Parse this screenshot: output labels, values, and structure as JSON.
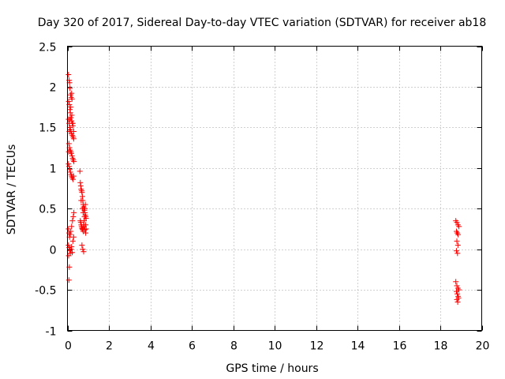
{
  "chart_data": {
    "type": "scatter",
    "title": "Day 320 of 2017, Sidereal Day-to-day VTEC variation (SDTVAR) for receiver ab18",
    "xlabel": "GPS time / hours",
    "ylabel": "SDTVAR / TECUs",
    "xlim": [
      0,
      20
    ],
    "ylim": [
      -1,
      2.5
    ],
    "xticks": [
      "0",
      "2",
      "4",
      "6",
      "8",
      "10",
      "12",
      "14",
      "16",
      "18",
      "20"
    ],
    "yticks": [
      "-1",
      "-0.5",
      "0",
      "0.5",
      "1",
      "1.5",
      "2",
      "2.5"
    ],
    "xtick_values": [
      0,
      2,
      4,
      6,
      8,
      10,
      12,
      14,
      16,
      18,
      20
    ],
    "ytick_values": [
      -1,
      -0.5,
      0,
      0.5,
      1,
      1.5,
      2,
      2.5
    ],
    "grid": true,
    "marker": "+",
    "color": "#ff0000",
    "series": [
      {
        "name": "SDTVAR",
        "points": [
          [
            0.05,
            2.15
          ],
          [
            0.08,
            2.08
          ],
          [
            0.1,
            2.05
          ],
          [
            0.12,
            1.98
          ],
          [
            0.15,
            1.9
          ],
          [
            0.18,
            1.87
          ],
          [
            0.2,
            1.92
          ],
          [
            0.22,
            1.85
          ],
          [
            0.06,
            1.82
          ],
          [
            0.09,
            1.78
          ],
          [
            0.12,
            1.72
          ],
          [
            0.14,
            1.68
          ],
          [
            0.17,
            1.62
          ],
          [
            0.2,
            1.58
          ],
          [
            0.23,
            1.55
          ],
          [
            0.26,
            1.52
          ],
          [
            0.05,
            1.6
          ],
          [
            0.08,
            1.55
          ],
          [
            0.11,
            1.5
          ],
          [
            0.14,
            1.47
          ],
          [
            0.17,
            1.45
          ],
          [
            0.2,
            1.42
          ],
          [
            0.24,
            1.4
          ],
          [
            0.28,
            1.38
          ],
          [
            0.3,
            1.36
          ],
          [
            0.07,
            1.3
          ],
          [
            0.1,
            1.25
          ],
          [
            0.13,
            1.22
          ],
          [
            0.16,
            1.2
          ],
          [
            0.19,
            1.18
          ],
          [
            0.22,
            1.15
          ],
          [
            0.25,
            1.12
          ],
          [
            0.28,
            1.1
          ],
          [
            0.31,
            1.08
          ],
          [
            0.05,
            1.05
          ],
          [
            0.08,
            1.02
          ],
          [
            0.11,
            0.98
          ],
          [
            0.14,
            0.95
          ],
          [
            0.17,
            0.92
          ],
          [
            0.2,
            0.9
          ],
          [
            0.23,
            0.88
          ],
          [
            0.27,
            0.86
          ],
          [
            0.3,
            0.9
          ],
          [
            0.06,
            1.2
          ],
          [
            0.09,
            1.45
          ],
          [
            0.12,
            1.6
          ],
          [
            0.16,
            1.75
          ],
          [
            0.21,
            1.65
          ],
          [
            0.26,
            1.55
          ],
          [
            0.3,
            1.45
          ],
          [
            0.05,
            0.25
          ],
          [
            0.08,
            0.2
          ],
          [
            0.1,
            0.15
          ],
          [
            0.13,
            0.18
          ],
          [
            0.16,
            0.22
          ],
          [
            0.2,
            0.28
          ],
          [
            0.24,
            0.35
          ],
          [
            0.28,
            0.4
          ],
          [
            0.31,
            0.45
          ],
          [
            0.05,
            0.05
          ],
          [
            0.08,
            0.02
          ],
          [
            0.11,
            -0.02
          ],
          [
            0.14,
            -0.05
          ],
          [
            0.17,
            0.0
          ],
          [
            0.2,
            0.03
          ],
          [
            0.23,
            -0.04
          ],
          [
            0.06,
            -0.08
          ],
          [
            0.09,
            -0.22
          ],
          [
            0.07,
            -0.38
          ],
          [
            0.26,
            0.1
          ],
          [
            0.3,
            0.15
          ],
          [
            0.6,
            0.96
          ],
          [
            0.62,
            0.82
          ],
          [
            0.64,
            0.78
          ],
          [
            0.66,
            0.74
          ],
          [
            0.68,
            0.72
          ],
          [
            0.7,
            0.7
          ],
          [
            0.72,
            0.65
          ],
          [
            0.74,
            0.6
          ],
          [
            0.76,
            0.55
          ],
          [
            0.78,
            0.52
          ],
          [
            0.8,
            0.5
          ],
          [
            0.82,
            0.48
          ],
          [
            0.84,
            0.45
          ],
          [
            0.86,
            0.42
          ],
          [
            0.88,
            0.4
          ],
          [
            0.9,
            0.38
          ],
          [
            0.62,
            0.35
          ],
          [
            0.64,
            0.33
          ],
          [
            0.66,
            0.3
          ],
          [
            0.68,
            0.28
          ],
          [
            0.7,
            0.26
          ],
          [
            0.72,
            0.25
          ],
          [
            0.74,
            0.24
          ],
          [
            0.76,
            0.22
          ],
          [
            0.78,
            0.3
          ],
          [
            0.8,
            0.35
          ],
          [
            0.82,
            0.4
          ],
          [
            0.84,
            0.5
          ],
          [
            0.86,
            0.55
          ],
          [
            0.88,
            0.3
          ],
          [
            0.9,
            0.25
          ],
          [
            0.7,
            0.05
          ],
          [
            0.74,
            0.0
          ],
          [
            0.78,
            -0.03
          ],
          [
            0.66,
            0.6
          ],
          [
            0.72,
            0.5
          ],
          [
            0.76,
            0.45
          ],
          [
            0.8,
            0.28
          ],
          [
            0.84,
            0.24
          ],
          [
            0.88,
            0.2
          ],
          [
            18.75,
            0.35
          ],
          [
            18.8,
            0.33
          ],
          [
            18.85,
            0.3
          ],
          [
            18.9,
            0.28
          ],
          [
            18.78,
            0.22
          ],
          [
            18.82,
            0.2
          ],
          [
            18.86,
            0.18
          ],
          [
            18.8,
            0.1
          ],
          [
            18.85,
            0.05
          ],
          [
            18.78,
            -0.02
          ],
          [
            18.83,
            -0.05
          ],
          [
            18.75,
            -0.4
          ],
          [
            18.8,
            -0.45
          ],
          [
            18.85,
            -0.48
          ],
          [
            18.9,
            -0.5
          ],
          [
            18.78,
            -0.52
          ],
          [
            18.82,
            -0.55
          ],
          [
            18.86,
            -0.58
          ],
          [
            18.8,
            -0.62
          ],
          [
            18.84,
            -0.65
          ],
          [
            18.88,
            -0.6
          ]
        ]
      }
    ]
  }
}
